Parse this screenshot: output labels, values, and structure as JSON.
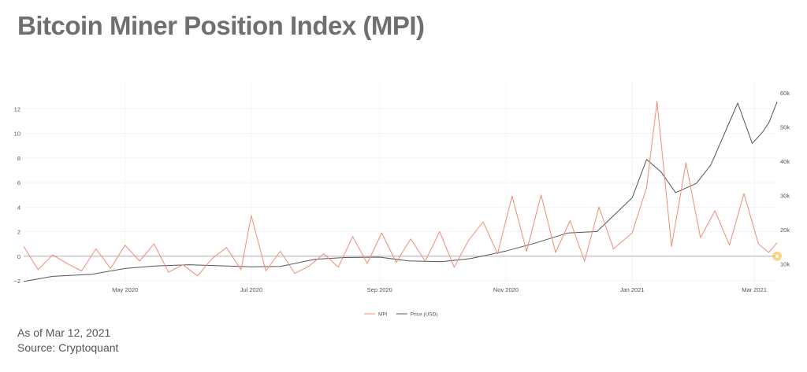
{
  "title": "Bitcoin Miner Position Index (MPI)",
  "footer": {
    "as_of": "As of Mar 12, 2021",
    "source": "Source: Cryptoquant"
  },
  "colors": {
    "mpi": "#f28b78",
    "price": "#555555",
    "grid": "#eeeeee",
    "zero_line": "#bdbdbd",
    "marker": "#f6c343"
  },
  "chart_data": {
    "type": "line",
    "x_range": [
      "2020-03-13",
      "2021-03-12"
    ],
    "x_ticks": [
      {
        "date": "2020-05-01",
        "label": "May 2020"
      },
      {
        "date": "2020-07-01",
        "label": "Jul 2020"
      },
      {
        "date": "2020-09-01",
        "label": "Sep 2020"
      },
      {
        "date": "2020-11-01",
        "label": "Nov 2020"
      },
      {
        "date": "2021-01-01",
        "label": "Jan 2021"
      },
      {
        "date": "2021-03-01",
        "label": "Mar 2021"
      }
    ],
    "y_left": {
      "range": [
        -2,
        13.3
      ],
      "ticks": [
        -2,
        0,
        2,
        4,
        6,
        8,
        10,
        12
      ],
      "tick_labels": [
        "−2",
        "0",
        "2",
        "4",
        "6",
        "8",
        "10",
        "12"
      ]
    },
    "y_right": {
      "range": [
        5000,
        60000
      ],
      "ticks": [
        10000,
        20000,
        30000,
        40000,
        50000,
        60000
      ],
      "tick_labels": [
        "10k",
        "20k",
        "30k",
        "40k",
        "50k",
        "60k"
      ]
    },
    "grid": true,
    "legend_position": "bottom-center",
    "series": [
      {
        "name": "MPI",
        "axis": "left",
        "points": [
          [
            "2020-03-13",
            0.8
          ],
          [
            "2020-03-20",
            -1.1
          ],
          [
            "2020-03-27",
            0.1
          ],
          [
            "2020-04-03",
            -0.6
          ],
          [
            "2020-04-10",
            -1.2
          ],
          [
            "2020-04-17",
            0.6
          ],
          [
            "2020-04-24",
            -1.0
          ],
          [
            "2020-05-01",
            0.9
          ],
          [
            "2020-05-08",
            -0.4
          ],
          [
            "2020-05-15",
            1.0
          ],
          [
            "2020-05-22",
            -1.3
          ],
          [
            "2020-05-29",
            -0.7
          ],
          [
            "2020-06-05",
            -1.6
          ],
          [
            "2020-06-12",
            -0.2
          ],
          [
            "2020-06-19",
            0.7
          ],
          [
            "2020-06-26",
            -1.1
          ],
          [
            "2020-07-01",
            3.3
          ],
          [
            "2020-07-08",
            -1.2
          ],
          [
            "2020-07-15",
            0.4
          ],
          [
            "2020-07-22",
            -1.4
          ],
          [
            "2020-07-29",
            -0.8
          ],
          [
            "2020-08-05",
            0.2
          ],
          [
            "2020-08-12",
            -0.9
          ],
          [
            "2020-08-19",
            1.6
          ],
          [
            "2020-08-26",
            -0.6
          ],
          [
            "2020-09-02",
            1.9
          ],
          [
            "2020-09-09",
            -0.5
          ],
          [
            "2020-09-16",
            1.4
          ],
          [
            "2020-09-23",
            -0.4
          ],
          [
            "2020-09-30",
            2.0
          ],
          [
            "2020-10-07",
            -0.9
          ],
          [
            "2020-10-14",
            1.3
          ],
          [
            "2020-10-21",
            2.8
          ],
          [
            "2020-10-28",
            0.2
          ],
          [
            "2020-11-04",
            4.9
          ],
          [
            "2020-11-11",
            0.4
          ],
          [
            "2020-11-18",
            5.0
          ],
          [
            "2020-11-25",
            0.3
          ],
          [
            "2020-12-02",
            2.9
          ],
          [
            "2020-12-09",
            -0.4
          ],
          [
            "2020-12-16",
            4.0
          ],
          [
            "2020-12-23",
            0.6
          ],
          [
            "2021-01-01",
            1.9
          ],
          [
            "2021-01-08",
            5.6
          ],
          [
            "2021-01-13",
            12.6
          ],
          [
            "2021-01-20",
            0.8
          ],
          [
            "2021-01-27",
            7.6
          ],
          [
            "2021-02-03",
            1.5
          ],
          [
            "2021-02-10",
            3.7
          ],
          [
            "2021-02-17",
            0.9
          ],
          [
            "2021-02-24",
            5.1
          ],
          [
            "2021-03-03",
            1.0
          ],
          [
            "2021-03-08",
            0.3
          ],
          [
            "2021-03-12",
            1.1
          ]
        ]
      },
      {
        "name": "Price (USD)",
        "axis": "right",
        "points": [
          [
            "2020-03-13",
            4800
          ],
          [
            "2020-03-27",
            6300
          ],
          [
            "2020-04-15",
            6900
          ],
          [
            "2020-05-01",
            8600
          ],
          [
            "2020-05-15",
            9300
          ],
          [
            "2020-06-01",
            9700
          ],
          [
            "2020-06-15",
            9400
          ],
          [
            "2020-07-01",
            9100
          ],
          [
            "2020-07-15",
            9200
          ],
          [
            "2020-08-01",
            11300
          ],
          [
            "2020-08-15",
            11800
          ],
          [
            "2020-09-01",
            11900
          ],
          [
            "2020-09-15",
            10800
          ],
          [
            "2020-10-01",
            10600
          ],
          [
            "2020-10-15",
            11500
          ],
          [
            "2020-11-01",
            13700
          ],
          [
            "2020-11-15",
            16000
          ],
          [
            "2020-12-01",
            19000
          ],
          [
            "2020-12-15",
            19400
          ],
          [
            "2021-01-01",
            29300
          ],
          [
            "2021-01-08",
            40500
          ],
          [
            "2021-01-15",
            36800
          ],
          [
            "2021-01-22",
            30800
          ],
          [
            "2021-02-01",
            33500
          ],
          [
            "2021-02-08",
            38900
          ],
          [
            "2021-02-15",
            48600
          ],
          [
            "2021-02-21",
            57000
          ],
          [
            "2021-02-28",
            45200
          ],
          [
            "2021-03-05",
            48500
          ],
          [
            "2021-03-08",
            51200
          ],
          [
            "2021-03-12",
            57300
          ]
        ]
      }
    ],
    "annotations": [
      {
        "type": "marker",
        "date": "2021-03-12",
        "value": 0,
        "axis": "left"
      }
    ]
  }
}
